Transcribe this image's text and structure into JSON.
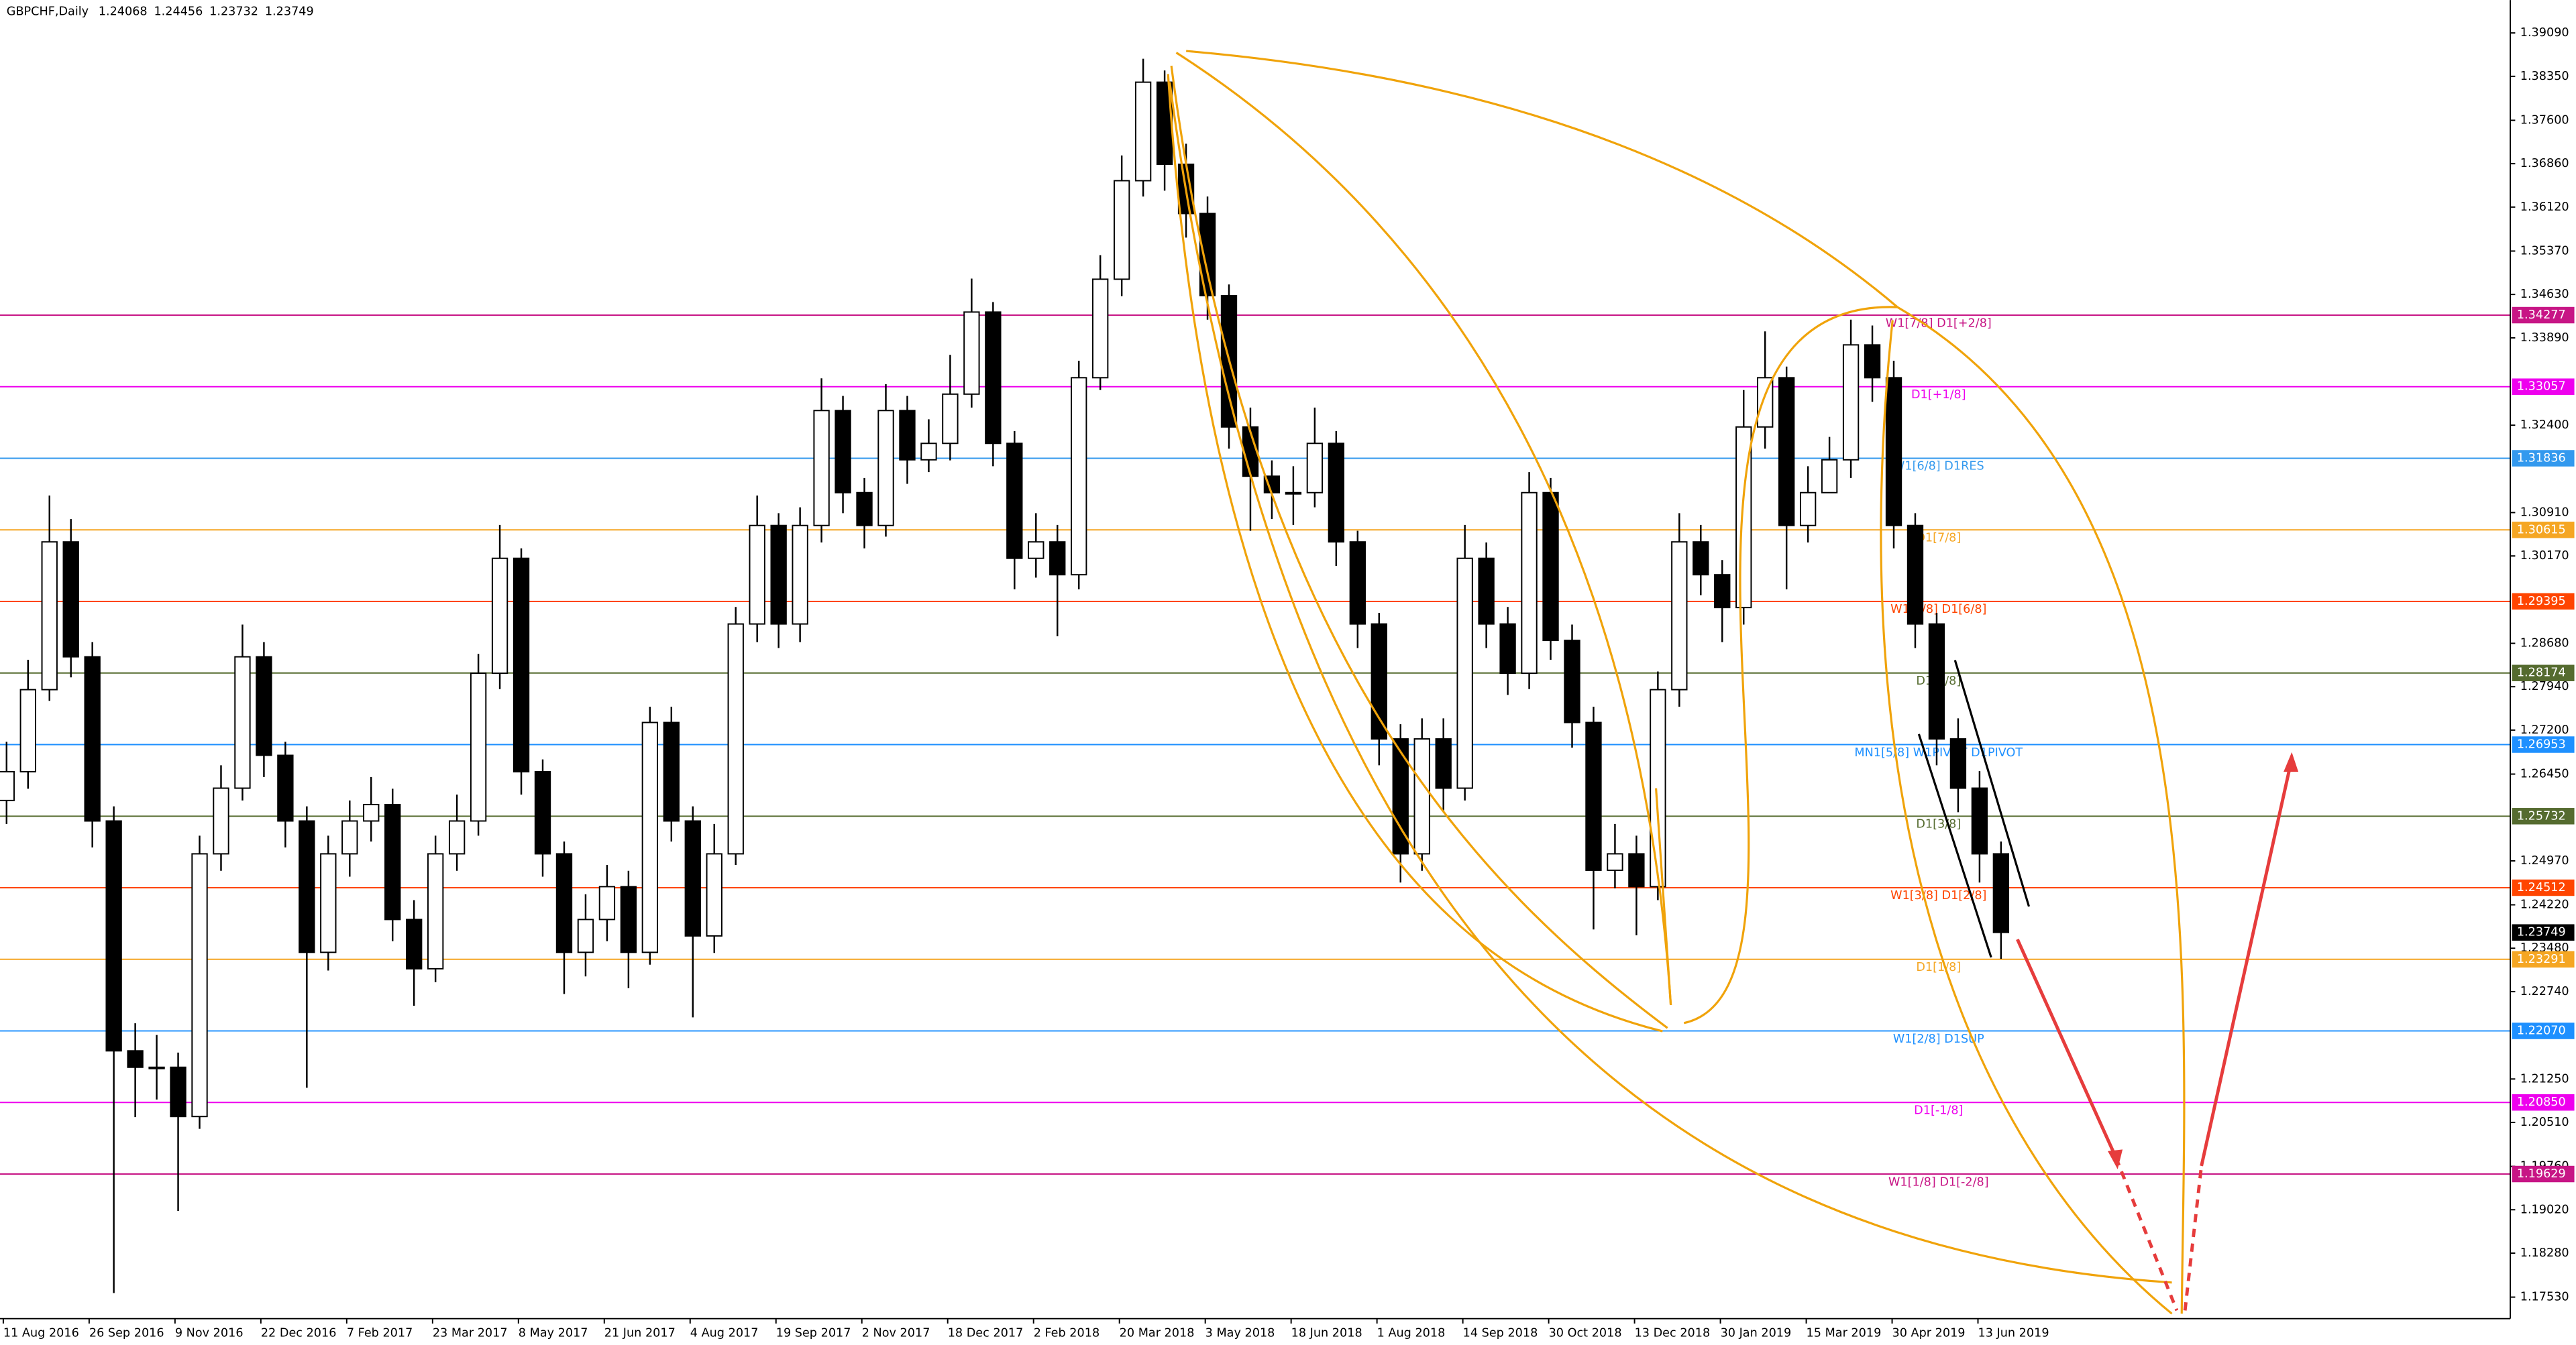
{
  "chart_data": {
    "type": "candlestick",
    "title": "GBPCHF,Daily",
    "quote": [
      1.24068,
      1.24456,
      1.23732,
      1.23749
    ],
    "bull_color": "#ffffff",
    "bear_color": "#000000",
    "last_price": 1.23749,
    "ylim": [
      1.17163,
      1.3965
    ],
    "yticks": [
      {
        "value": 1.3909,
        "label": "1.39090"
      },
      {
        "value": 1.3835,
        "label": "1.38350"
      },
      {
        "value": 1.376,
        "label": "1.37600"
      },
      {
        "value": 1.3686,
        "label": "1.36860"
      },
      {
        "value": 1.3612,
        "label": "1.36120"
      },
      {
        "value": 1.3537,
        "label": "1.35370"
      },
      {
        "value": 1.3463,
        "label": "1.34630"
      },
      {
        "value": 1.3389,
        "label": "1.33890"
      },
      {
        "value": 1.324,
        "label": "1.32400"
      },
      {
        "value": 1.3091,
        "label": "1.30910"
      },
      {
        "value": 1.3017,
        "label": "1.30170"
      },
      {
        "value": 1.2868,
        "label": "1.28680"
      },
      {
        "value": 1.2794,
        "label": "1.27940"
      },
      {
        "value": 1.272,
        "label": "1.27200"
      },
      {
        "value": 1.2645,
        "label": "1.26450"
      },
      {
        "value": 1.2497,
        "label": "1.24970"
      },
      {
        "value": 1.2422,
        "label": "1.24220"
      },
      {
        "value": 1.2348,
        "label": "1.23480"
      },
      {
        "value": 1.2274,
        "label": "1.22740"
      },
      {
        "value": 1.2125,
        "label": "1.21250"
      },
      {
        "value": 1.2051,
        "label": "1.20510"
      },
      {
        "value": 1.1976,
        "label": "1.19760"
      },
      {
        "value": 1.1902,
        "label": "1.19020"
      },
      {
        "value": 1.1828,
        "label": "1.18280"
      },
      {
        "value": 1.1753,
        "label": "1.17530"
      }
    ],
    "xticks": [
      "11 Aug 2016",
      "26 Sep 2016",
      "9 Nov 2016",
      "22 Dec 2016",
      "7 Feb 2017",
      "23 Mar 2017",
      "8 May 2017",
      "21 Jun 2017",
      "4 Aug 2017",
      "19 Sep 2017",
      "2 Nov 2017",
      "18 Dec 2017",
      "2 Feb 2018",
      "20 Mar 2018",
      "3 May 2018",
      "18 Jun 2018",
      "1 Aug 2018",
      "14 Sep 2018",
      "30 Oct 2018",
      "13 Dec 2018",
      "30 Jan 2019",
      "15 Mar 2019",
      "30 Apr 2019",
      "13 Jun 2019"
    ],
    "levels": [
      {
        "price": 1.34277,
        "label": "W1[7/8] D1[+2/8]",
        "color": "#c71585"
      },
      {
        "price": 1.33057,
        "label": "D1[+1/8]",
        "color": "#ee00ee"
      },
      {
        "price": 1.31836,
        "label": "W1[6/8] D1RES",
        "color": "#3399ee"
      },
      {
        "price": 1.30615,
        "label": "D1[7/8]",
        "color": "#f5a623"
      },
      {
        "price": 1.29395,
        "label": "W1[5/8] D1[6/8]",
        "color": "#ff4500"
      },
      {
        "price": 1.28174,
        "label": "D1[5/8]",
        "color": "#556b2f"
      },
      {
        "price": 1.26953,
        "label": "MN1[5/8] W1PIVOT D1PIVOT",
        "color": "#1e90ff"
      },
      {
        "price": 1.25732,
        "label": "D1[3/8]",
        "color": "#556b2f"
      },
      {
        "price": 1.24512,
        "label": "W1[3/8] D1[2/8]",
        "color": "#ff4500"
      },
      {
        "price": 1.23291,
        "label": "D1[1/8]",
        "color": "#f5a623"
      },
      {
        "price": {
          "value": 1.2207,
          "label": "1.22070"
        },
        "label": "W1[2/8] D1SUP",
        "color": "#1e90ff"
      },
      {
        "price": {
          "value": 1.2085,
          "label": "1.20850"
        },
        "label": "D1[-1/8]",
        "color": "#ee00ee"
      },
      {
        "price": 1.19629,
        "label": "W1[1/8] D1[-2/8]",
        "color": "#c71585"
      }
    ],
    "ohlc": [
      [
        1.26,
        1.27,
        1.256,
        1.2649
      ],
      [
        1.2649,
        1.284,
        1.262,
        1.2789
      ],
      [
        1.2789,
        1.312,
        1.277,
        1.3041
      ],
      [
        1.3041,
        1.308,
        1.281,
        1.2845
      ],
      [
        1.2845,
        1.287,
        1.252,
        1.2565
      ],
      [
        1.2565,
        1.259,
        1.176,
        1.2173
      ],
      [
        1.2173,
        1.222,
        1.206,
        1.2145
      ],
      [
        1.2145,
        1.22,
        1.209,
        1.2145
      ],
      [
        1.2145,
        1.217,
        1.19,
        1.2061
      ],
      [
        1.2061,
        1.254,
        1.204,
        1.2509
      ],
      [
        1.2509,
        1.266,
        1.248,
        1.2621
      ],
      [
        1.2621,
        1.29,
        1.26,
        1.2845
      ],
      [
        1.2845,
        1.287,
        1.264,
        1.2677
      ],
      [
        1.2677,
        1.27,
        1.252,
        1.2565
      ],
      [
        1.2565,
        1.259,
        1.211,
        1.2341
      ],
      [
        1.2341,
        1.254,
        1.231,
        1.2509
      ],
      [
        1.2509,
        1.26,
        1.247,
        1.2565
      ],
      [
        1.2565,
        1.264,
        1.253,
        1.2593
      ],
      [
        1.2593,
        1.262,
        1.236,
        1.2397
      ],
      [
        1.2397,
        1.243,
        1.225,
        1.2313
      ],
      [
        1.2313,
        1.254,
        1.229,
        1.2509
      ],
      [
        1.2509,
        1.261,
        1.248,
        1.2565
      ],
      [
        1.2565,
        1.285,
        1.254,
        1.2817
      ],
      [
        1.2817,
        1.307,
        1.279,
        1.3013
      ],
      [
        1.3013,
        1.303,
        1.261,
        1.2649
      ],
      [
        1.2649,
        1.267,
        1.247,
        1.2509
      ],
      [
        1.2509,
        1.253,
        1.227,
        1.2341
      ],
      [
        1.2341,
        1.244,
        1.23,
        1.2397
      ],
      [
        1.2397,
        1.249,
        1.236,
        1.2453
      ],
      [
        1.2453,
        1.248,
        1.228,
        1.2341
      ],
      [
        1.2341,
        1.276,
        1.232,
        1.2733
      ],
      [
        1.2733,
        1.276,
        1.253,
        1.2565
      ],
      [
        1.2565,
        1.259,
        1.223,
        1.2369
      ],
      [
        1.2369,
        1.256,
        1.234,
        1.2509
      ],
      [
        1.2509,
        1.293,
        1.249,
        1.2901
      ],
      [
        1.2901,
        1.312,
        1.287,
        1.3069
      ],
      [
        1.3069,
        1.309,
        1.286,
        1.2901
      ],
      [
        1.2901,
        1.31,
        1.287,
        1.3069
      ],
      [
        1.3069,
        1.332,
        1.304,
        1.3265
      ],
      [
        1.3265,
        1.329,
        1.309,
        1.3125
      ],
      [
        1.3125,
        1.315,
        1.303,
        1.3069
      ],
      [
        1.3069,
        1.331,
        1.305,
        1.3265
      ],
      [
        1.3265,
        1.329,
        1.314,
        1.3181
      ],
      [
        1.3181,
        1.325,
        1.316,
        1.3209
      ],
      [
        1.3209,
        1.336,
        1.318,
        1.3293
      ],
      [
        1.3293,
        1.349,
        1.327,
        1.3433
      ],
      [
        1.3433,
        1.345,
        1.317,
        1.3209
      ],
      [
        1.3209,
        1.323,
        1.296,
        1.3013
      ],
      [
        1.3013,
        1.309,
        1.298,
        1.3041
      ],
      [
        1.3041,
        1.307,
        1.288,
        1.2985
      ],
      [
        1.2985,
        1.335,
        1.296,
        1.3321
      ],
      [
        1.3321,
        1.353,
        1.33,
        1.3489
      ],
      [
        1.3489,
        1.37,
        1.346,
        1.3657
      ],
      [
        1.3657,
        1.3865,
        1.363,
        1.3825
      ],
      [
        1.3825,
        1.3845,
        1.364,
        1.3685
      ],
      [
        1.3685,
        1.372,
        1.356,
        1.3601
      ],
      [
        1.3601,
        1.363,
        1.342,
        1.3461
      ],
      [
        1.3461,
        1.348,
        1.32,
        1.3237
      ],
      [
        1.3237,
        1.327,
        1.306,
        1.3153
      ],
      [
        1.3153,
        1.318,
        1.308,
        1.3125
      ],
      [
        1.3125,
        1.317,
        1.307,
        1.3125
      ],
      [
        1.3125,
        1.327,
        1.31,
        1.3209
      ],
      [
        1.3209,
        1.323,
        1.3,
        1.3041
      ],
      [
        1.3041,
        1.306,
        1.286,
        1.2901
      ],
      [
        1.2901,
        1.292,
        1.266,
        1.2705
      ],
      [
        1.2705,
        1.273,
        1.246,
        1.2509
      ],
      [
        1.2509,
        1.274,
        1.248,
        1.2705
      ],
      [
        1.2705,
        1.274,
        1.258,
        1.2621
      ],
      [
        1.2621,
        1.307,
        1.26,
        1.3013
      ],
      [
        1.3013,
        1.304,
        1.286,
        1.2901
      ],
      [
        1.2901,
        1.293,
        1.278,
        1.2817
      ],
      [
        1.2817,
        1.316,
        1.279,
        1.3125
      ],
      [
        1.3125,
        1.315,
        1.284,
        1.2873
      ],
      [
        1.2873,
        1.29,
        1.269,
        1.2733
      ],
      [
        1.2733,
        1.276,
        1.238,
        1.2481
      ],
      [
        1.2481,
        1.256,
        1.245,
        1.2509
      ],
      [
        1.2509,
        1.254,
        1.237,
        1.2453
      ],
      [
        1.2453,
        1.282,
        1.243,
        1.2789
      ],
      [
        1.2789,
        1.309,
        1.276,
        1.3041
      ],
      [
        1.3041,
        1.307,
        1.295,
        1.2985
      ],
      [
        1.2985,
        1.301,
        1.287,
        1.2929
      ],
      [
        1.2929,
        1.33,
        1.29,
        1.3237
      ],
      [
        1.3237,
        1.34,
        1.32,
        1.3321
      ],
      [
        1.3321,
        1.334,
        1.296,
        1.3069
      ],
      [
        1.3069,
        1.317,
        1.304,
        1.3125
      ],
      [
        1.3125,
        1.322,
        1.314,
        1.3181
      ],
      [
        1.3181,
        1.342,
        1.315,
        1.3377
      ],
      [
        1.3377,
        1.341,
        1.328,
        1.3321
      ],
      [
        1.3321,
        1.335,
        1.303,
        1.3069
      ],
      [
        1.3069,
        1.309,
        1.286,
        1.2901
      ],
      [
        1.2901,
        1.292,
        1.266,
        1.2705
      ],
      [
        1.2705,
        1.274,
        1.258,
        1.2621
      ],
      [
        1.2621,
        1.265,
        1.246,
        1.2509
      ],
      [
        1.2509,
        1.253,
        1.233,
        1.2375
      ]
    ]
  }
}
